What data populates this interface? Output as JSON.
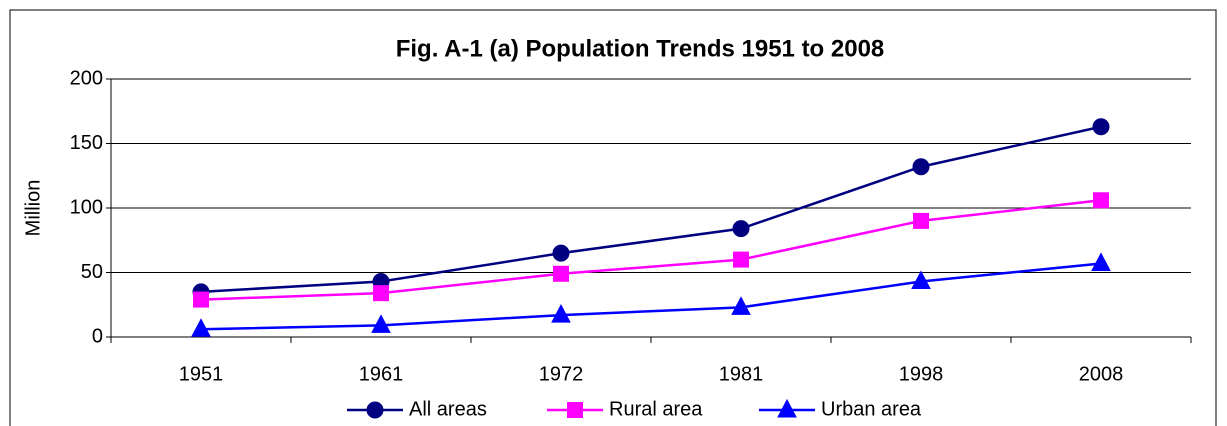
{
  "chart_data": {
    "type": "line",
    "title": "Fig. A-1 (a) Population Trends 1951 to 2008",
    "y_label": "Million",
    "categories": [
      "1951",
      "1961",
      "1972",
      "1981",
      "1998",
      "2008"
    ],
    "series": [
      {
        "name": "All areas",
        "color": "#000080",
        "marker": "circle",
        "values": [
          35,
          43,
          65,
          84,
          132,
          163
        ]
      },
      {
        "name": "Rural area",
        "color": "#ff00ff",
        "marker": "square",
        "values": [
          29,
          34,
          49,
          60,
          90,
          106
        ]
      },
      {
        "name": "Urban area",
        "color": "#0000ff",
        "marker": "triangle",
        "values": [
          6,
          9,
          17,
          23,
          43,
          57
        ]
      }
    ],
    "ylim": [
      0,
      200
    ],
    "yticks": [
      0,
      50,
      100,
      150,
      200
    ],
    "grid": true,
    "legend": "bottom"
  }
}
